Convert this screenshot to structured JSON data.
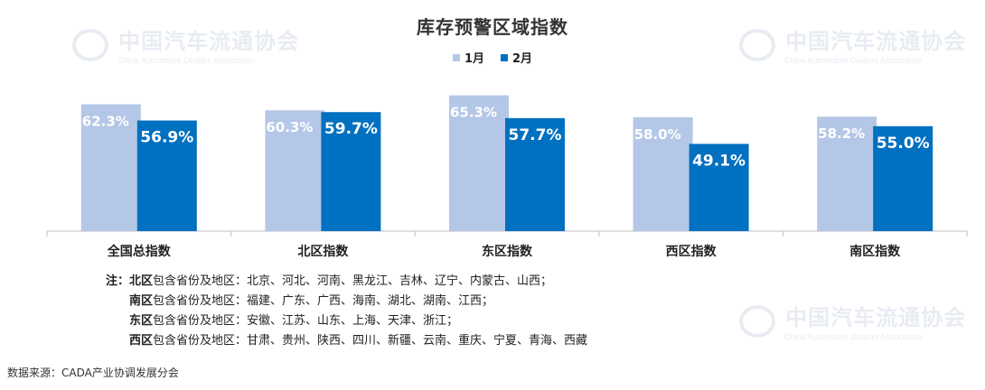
{
  "watermark": {
    "cn": "中国汽车流通协会",
    "en": "China Automobile Dealers Association"
  },
  "chart_data": {
    "type": "bar",
    "title": "库存预警区域指数",
    "categories": [
      "全国总指数",
      "北区指数",
      "东区指数",
      "西区指数",
      "南区指数"
    ],
    "series": [
      {
        "name": "1月",
        "color": "#b4c7e7",
        "values": [
          62.3,
          60.3,
          65.3,
          58.0,
          58.2
        ],
        "labels": [
          "62.3%",
          "60.3%",
          "65.3%",
          "58.0%",
          "58.2%"
        ]
      },
      {
        "name": "2月",
        "color": "#0070c0",
        "values": [
          56.9,
          59.7,
          57.7,
          49.1,
          55.0
        ],
        "labels": [
          "56.9%",
          "59.7%",
          "57.7%",
          "49.1%",
          "55.0%"
        ]
      }
    ],
    "ylim": [
      20,
      70
    ],
    "legend": "top-center",
    "grid": false
  },
  "notes": {
    "prefix": "注：",
    "rows": [
      {
        "region": "北区",
        "text": "包含省份及地区：北京、河北、河南、黑龙江、吉林、辽宁、内蒙古、山西；"
      },
      {
        "region": "南区",
        "text": "包含省份及地区：福建、广东、广西、海南、湖北、湖南、江西；"
      },
      {
        "region": "东区",
        "text": "包含省份及地区：安徽、江苏、山东、上海、天津、浙江；"
      },
      {
        "region": "西区",
        "text": "包含省份及地区：甘肃、贵州、陕西、四川、新疆、云南、重庆、宁夏、青海、西藏"
      }
    ]
  },
  "source": "数据来源：CADA产业协调发展分会"
}
